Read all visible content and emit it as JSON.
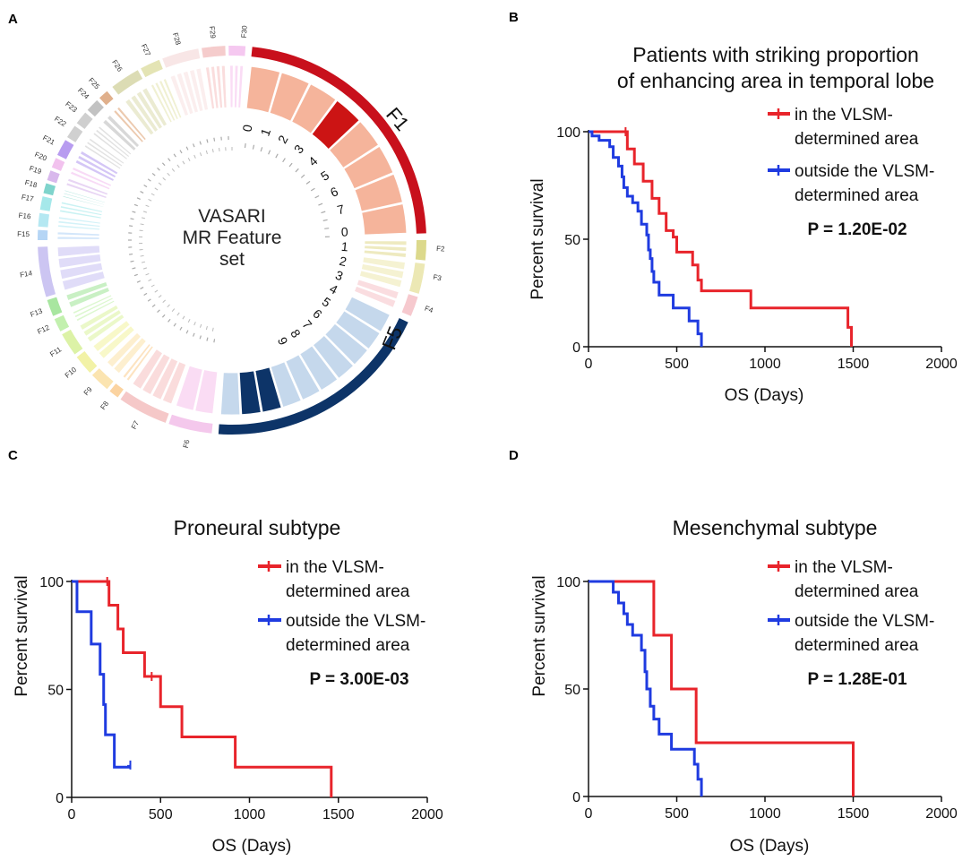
{
  "panel_letters": [
    "A",
    "B",
    "C",
    "D"
  ],
  "circos": {
    "center_lines": [
      "VASARI",
      "MR Feature",
      "set"
    ],
    "big_labels": [
      "F1",
      "F5"
    ],
    "f1_numbers": [
      "0",
      "1",
      "2",
      "3",
      "4",
      "5",
      "6",
      "7"
    ],
    "f5_numbers": [
      "0",
      "1",
      "2",
      "3",
      "4",
      "5",
      "6",
      "7",
      "8",
      "9"
    ],
    "segment_labels": [
      "F2",
      "F3",
      "F4",
      "F6",
      "F7",
      "F8",
      "F9",
      "F10",
      "F11",
      "F12",
      "F13",
      "F14",
      "F15",
      "F16",
      "F17",
      "F18",
      "F19",
      "F20",
      "F21",
      "F22",
      "F23",
      "F24",
      "F25",
      "F26",
      "F27",
      "F28",
      "F29",
      "F30"
    ]
  },
  "legend": {
    "in_line1": "in the VLSM-",
    "in_line2": "determined area",
    "out_line1": "outside the VLSM-",
    "out_line2": "determined area"
  },
  "colors": {
    "in_area": "#e8242b",
    "outside_area": "#1f3be0",
    "f1": "#c8101c",
    "f5": "#0d3468"
  },
  "chart_data": [
    {
      "id": "B",
      "type": "line",
      "subtype": "kaplan-meier",
      "title_lines": [
        "Patients with striking proportion",
        "of enhancing area in temporal lobe"
      ],
      "xlabel": "OS (Days)",
      "ylabel": "Percent survival",
      "xlim": [
        0,
        2000
      ],
      "ylim": [
        0,
        100
      ],
      "xticks": [
        0,
        500,
        1000,
        1500,
        2000
      ],
      "yticks": [
        0,
        50,
        100
      ],
      "p_value": "P = 1.20E-02",
      "series": [
        {
          "name": "in the VLSM-determined area",
          "color": "#e8242b",
          "steps": [
            [
              0,
              100
            ],
            [
              220,
              92
            ],
            [
              260,
              85
            ],
            [
              310,
              77
            ],
            [
              360,
              69
            ],
            [
              400,
              62
            ],
            [
              440,
              54
            ],
            [
              480,
              51
            ],
            [
              500,
              44
            ],
            [
              590,
              38
            ],
            [
              620,
              31
            ],
            [
              640,
              26
            ],
            [
              920,
              18
            ],
            [
              1470,
              9
            ],
            [
              1490,
              0
            ]
          ],
          "censored": [
            [
              210,
              100
            ]
          ]
        },
        {
          "name": "outside the VLSM-determined area",
          "color": "#1f3be0",
          "steps": [
            [
              0,
              100
            ],
            [
              20,
              98
            ],
            [
              60,
              96
            ],
            [
              120,
              93
            ],
            [
              140,
              88
            ],
            [
              170,
              84
            ],
            [
              190,
              79
            ],
            [
              200,
              74
            ],
            [
              220,
              70
            ],
            [
              250,
              67
            ],
            [
              280,
              63
            ],
            [
              300,
              57
            ],
            [
              330,
              52
            ],
            [
              340,
              45
            ],
            [
              350,
              41
            ],
            [
              360,
              35
            ],
            [
              370,
              30
            ],
            [
              400,
              24
            ],
            [
              480,
              18
            ],
            [
              570,
              12
            ],
            [
              620,
              6
            ],
            [
              640,
              0
            ]
          ],
          "censored": []
        }
      ]
    },
    {
      "id": "C",
      "type": "line",
      "subtype": "kaplan-meier",
      "title_lines": [
        "Proneural subtype"
      ],
      "xlabel": "OS (Days)",
      "ylabel": "Percent survival",
      "xlim": [
        0,
        2000
      ],
      "ylim": [
        0,
        100
      ],
      "xticks": [
        0,
        500,
        1000,
        1500,
        2000
      ],
      "yticks": [
        0,
        50,
        100
      ],
      "p_value": "P = 3.00E-03",
      "series": [
        {
          "name": "in the VLSM-determined area",
          "color": "#e8242b",
          "steps": [
            [
              0,
              100
            ],
            [
              210,
              89
            ],
            [
              260,
              78
            ],
            [
              290,
              67
            ],
            [
              410,
              56
            ],
            [
              500,
              42
            ],
            [
              620,
              28
            ],
            [
              920,
              14
            ],
            [
              1460,
              0
            ]
          ],
          "censored": [
            [
              200,
              100
            ],
            [
              450,
              56
            ]
          ]
        },
        {
          "name": "outside the VLSM-determined area",
          "color": "#1f3be0",
          "steps": [
            [
              0,
              100
            ],
            [
              30,
              86
            ],
            [
              110,
              71
            ],
            [
              160,
              57
            ],
            [
              180,
              43
            ],
            [
              190,
              29
            ],
            [
              240,
              14
            ],
            [
              320,
              15
            ]
          ],
          "censored": [
            [
              330,
              15
            ]
          ]
        }
      ]
    },
    {
      "id": "D",
      "type": "line",
      "subtype": "kaplan-meier",
      "title_lines": [
        "Mesenchymal subtype"
      ],
      "xlabel": "OS (Days)",
      "ylabel": "Percent survival",
      "xlim": [
        0,
        2000
      ],
      "ylim": [
        0,
        100
      ],
      "xticks": [
        0,
        500,
        1000,
        1500,
        2000
      ],
      "yticks": [
        0,
        50,
        100
      ],
      "p_value": "P = 1.28E-01",
      "series": [
        {
          "name": "in the VLSM-determined area",
          "color": "#e8242b",
          "steps": [
            [
              0,
              100
            ],
            [
              370,
              75
            ],
            [
              470,
              50
            ],
            [
              610,
              25
            ],
            [
              1500,
              0
            ]
          ],
          "censored": []
        },
        {
          "name": "outside the VLSM-determined area",
          "color": "#1f3be0",
          "steps": [
            [
              0,
              100
            ],
            [
              140,
              95
            ],
            [
              170,
              90
            ],
            [
              200,
              85
            ],
            [
              220,
              80
            ],
            [
              250,
              75
            ],
            [
              300,
              68
            ],
            [
              320,
              58
            ],
            [
              330,
              50
            ],
            [
              350,
              42
            ],
            [
              370,
              36
            ],
            [
              400,
              29
            ],
            [
              470,
              22
            ],
            [
              600,
              15
            ],
            [
              620,
              8
            ],
            [
              640,
              0
            ]
          ],
          "censored": []
        }
      ]
    }
  ]
}
